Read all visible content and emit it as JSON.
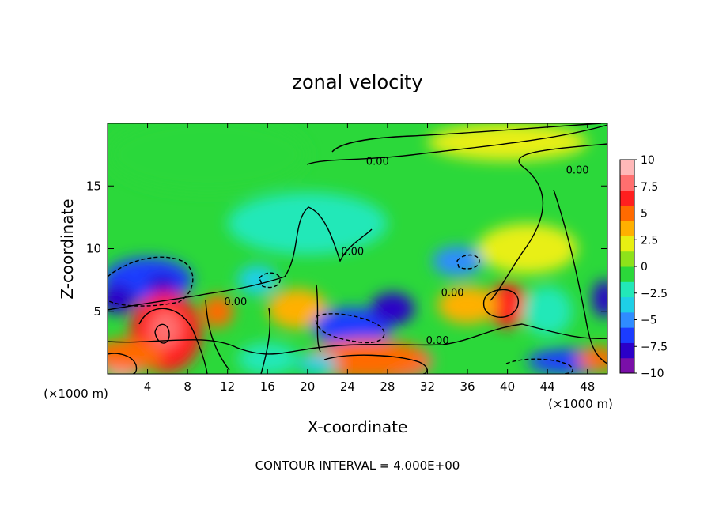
{
  "chart_data": {
    "type": "heatmap",
    "title": "zonal velocity",
    "xlabel": "X-coordinate",
    "ylabel": "Z-coordinate",
    "x_unit_left": "(×1000 m)",
    "x_unit_right": "(×1000 m)",
    "footer": "CONTOUR INTERVAL = 4.000E+00",
    "xlim": [
      0,
      50
    ],
    "ylim": [
      0,
      20
    ],
    "x_ticks": [
      4,
      8,
      12,
      16,
      20,
      24,
      28,
      32,
      36,
      40,
      44,
      48
    ],
    "y_ticks": [
      5,
      10,
      15
    ],
    "colorbar": {
      "range": [
        -10,
        10
      ],
      "ticks": [
        "10",
        "7.5",
        "5",
        "2.5",
        "0",
        "−2.5",
        "−5",
        "−7.5",
        "−10"
      ],
      "colors": [
        "#7a0fa8",
        "#2b00c8",
        "#1b3cff",
        "#2f8cff",
        "#1ecfe6",
        "#22e8b8",
        "#2bd83a",
        "#8ee21a",
        "#e8ef12",
        "#ffb000",
        "#ff6a00",
        "#ff1f1f",
        "#ff6f6f",
        "#ffb8b8"
      ]
    },
    "contour_labels": [
      {
        "text": "0.00",
        "x": 27,
        "z": 16.7
      },
      {
        "text": "0.00",
        "x": 47,
        "z": 16
      },
      {
        "text": "0.00",
        "x": 24.5,
        "z": 9.5
      },
      {
        "text": "0.00",
        "x": 12.8,
        "z": 5.5
      },
      {
        "text": "0.00",
        "x": 34.5,
        "z": 6.2
      },
      {
        "text": "0.00",
        "x": 33,
        "z": 2.4
      }
    ],
    "blobs": [
      {
        "x": 4,
        "z": 7.5,
        "rx": 4.5,
        "rz": 1.8,
        "v": -7
      },
      {
        "x": 1,
        "z": 6,
        "rx": 1.8,
        "rz": 1.2,
        "v": -9
      },
      {
        "x": 5.5,
        "z": 7.2,
        "rx": 1.6,
        "rz": 0.7,
        "v": -8.5
      },
      {
        "x": 5.8,
        "z": 3.3,
        "rx": 3.6,
        "rz": 3.2,
        "v": 6.5
      },
      {
        "x": 5.8,
        "z": 3.6,
        "rx": 1.6,
        "rz": 1.5,
        "v": 9
      },
      {
        "x": 1.5,
        "z": 0.8,
        "rx": 2.0,
        "rz": 1.2,
        "v": 10
      },
      {
        "x": 2,
        "z": 1.5,
        "rx": 3.5,
        "rz": 1.3,
        "v": 6
      },
      {
        "x": 11,
        "z": 5,
        "rx": 1.6,
        "rz": 1.3,
        "v": 6
      },
      {
        "x": 15,
        "z": 7.5,
        "rx": 2.0,
        "rz": 1.2,
        "v": -4
      },
      {
        "x": 19,
        "z": 5.2,
        "rx": 3.0,
        "rz": 1.6,
        "v": 3.5
      },
      {
        "x": 24.5,
        "z": 3.8,
        "rx": 4.0,
        "rz": 1.5,
        "v": -7.5
      },
      {
        "x": 28.5,
        "z": 5.2,
        "rx": 2.2,
        "rz": 1.3,
        "v": -8.5
      },
      {
        "x": 29,
        "z": 1,
        "rx": 3.5,
        "rz": 1.4,
        "v": 9
      },
      {
        "x": 26,
        "z": 1.2,
        "rx": 6.0,
        "rz": 1.6,
        "v": 6
      },
      {
        "x": 35,
        "z": 9,
        "rx": 2.5,
        "rz": 1.2,
        "v": -5
      },
      {
        "x": 40,
        "z": 5.5,
        "rx": 2.0,
        "rz": 1.8,
        "v": 6.5
      },
      {
        "x": 36,
        "z": 5.5,
        "rx": 3.0,
        "rz": 1.5,
        "v": 4
      },
      {
        "x": 46,
        "z": 1,
        "rx": 4.0,
        "rz": 1.0,
        "v": -7
      },
      {
        "x": 49.7,
        "z": 6,
        "rx": 1.2,
        "rz": 1.5,
        "v": -8
      },
      {
        "x": 44,
        "z": 5,
        "rx": 2.5,
        "rz": 2.0,
        "v": -3
      },
      {
        "x": 20,
        "z": 12,
        "rx": 8.0,
        "rz": 2.5,
        "v": -2
      },
      {
        "x": 42,
        "z": 10,
        "rx": 5.0,
        "rz": 2.0,
        "v": 2
      },
      {
        "x": 10,
        "z": 17.5,
        "rx": 10.0,
        "rz": 3.0,
        "v": -0.8
      },
      {
        "x": 40,
        "z": 18.5,
        "rx": 8.0,
        "rz": 1.5,
        "v": 1.8
      },
      {
        "x": 49,
        "z": 1.2,
        "rx": 2.0,
        "rz": 1.0,
        "v": 6
      },
      {
        "x": 16,
        "z": 1.2,
        "rx": 3.0,
        "rz": 1.3,
        "v": -2.5
      },
      {
        "x": 21,
        "z": 0.8,
        "rx": 2.0,
        "rz": 0.8,
        "v": -4
      }
    ]
  }
}
